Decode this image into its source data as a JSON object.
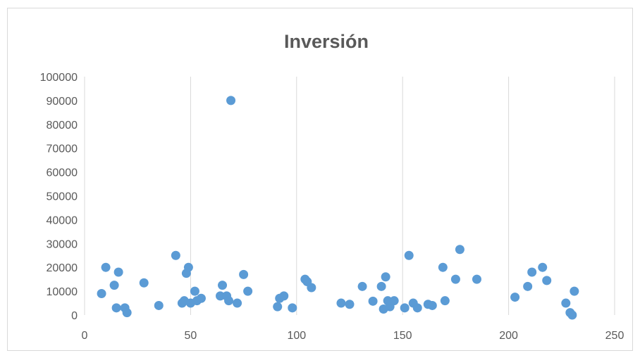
{
  "chart_data": {
    "type": "scatter",
    "title": "Inversión",
    "xlabel": "",
    "ylabel": "",
    "xlim": [
      0,
      250
    ],
    "ylim": [
      0,
      100000
    ],
    "x_ticks": [
      0,
      50,
      100,
      150,
      200,
      250
    ],
    "y_ticks": [
      0,
      10000,
      20000,
      30000,
      40000,
      50000,
      60000,
      70000,
      80000,
      90000,
      100000
    ],
    "grid": {
      "vertical": true,
      "horizontal": false
    },
    "legend": "none",
    "marker_color": "#5b9bd5",
    "series": [
      {
        "points": [
          [
            8,
            9000
          ],
          [
            10,
            20000
          ],
          [
            14,
            12500
          ],
          [
            15,
            3000
          ],
          [
            16,
            18000
          ],
          [
            19,
            3000
          ],
          [
            20,
            1000
          ],
          [
            28,
            13500
          ],
          [
            35,
            4000
          ],
          [
            43,
            25000
          ],
          [
            46,
            5000
          ],
          [
            47,
            6000
          ],
          [
            48,
            17500
          ],
          [
            49,
            20000
          ],
          [
            50,
            5000
          ],
          [
            52,
            10000
          ],
          [
            53,
            6000
          ],
          [
            55,
            7000
          ],
          [
            64,
            8000
          ],
          [
            65,
            12500
          ],
          [
            67,
            8000
          ],
          [
            68,
            6000
          ],
          [
            69,
            90000
          ],
          [
            72,
            5000
          ],
          [
            75,
            17000
          ],
          [
            77,
            10000
          ],
          [
            91,
            3500
          ],
          [
            92,
            7000
          ],
          [
            94,
            8000
          ],
          [
            98,
            3000
          ],
          [
            104,
            15000
          ],
          [
            105,
            14000
          ],
          [
            107,
            11500
          ],
          [
            121,
            5000
          ],
          [
            125,
            4500
          ],
          [
            131,
            12000
          ],
          [
            136,
            5800
          ],
          [
            140,
            12000
          ],
          [
            141,
            2500
          ],
          [
            142,
            16000
          ],
          [
            143,
            6000
          ],
          [
            144,
            3500
          ],
          [
            146,
            6000
          ],
          [
            151,
            3000
          ],
          [
            153,
            25000
          ],
          [
            155,
            5000
          ],
          [
            157,
            3000
          ],
          [
            162,
            4500
          ],
          [
            164,
            4000
          ],
          [
            169,
            20000
          ],
          [
            170,
            6000
          ],
          [
            175,
            15000
          ],
          [
            177,
            27500
          ],
          [
            185,
            15000
          ],
          [
            203,
            7500
          ],
          [
            209,
            12000
          ],
          [
            211,
            18000
          ],
          [
            216,
            20000
          ],
          [
            218,
            14500
          ],
          [
            227,
            5000
          ],
          [
            229,
            1000
          ],
          [
            230,
            0
          ],
          [
            231,
            10000
          ]
        ]
      }
    ]
  }
}
